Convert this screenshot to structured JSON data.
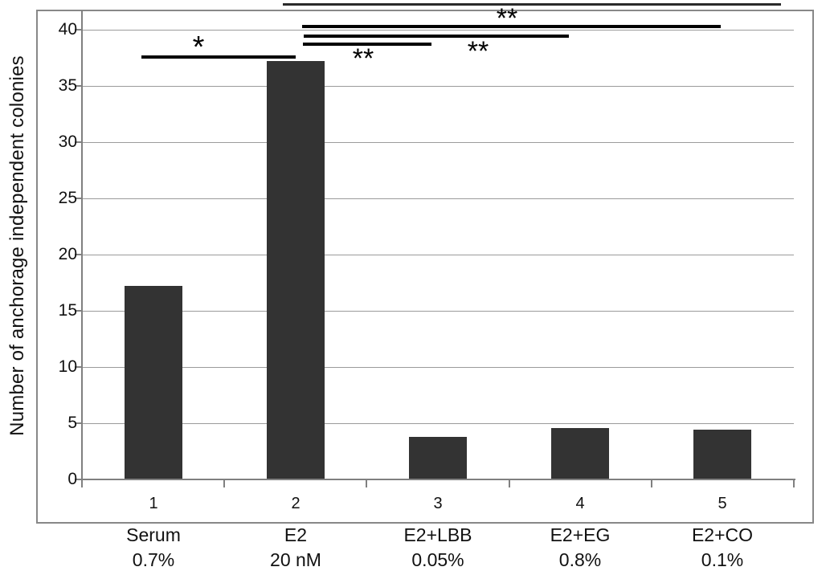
{
  "chart_data": {
    "type": "bar",
    "title": "",
    "xlabel": "",
    "ylabel": "Number of anchorage independent colonies",
    "ylim": [
      0,
      40
    ],
    "yticks": [
      0,
      5,
      10,
      15,
      20,
      25,
      30,
      35,
      40
    ],
    "grid": true,
    "legend": "none",
    "bar_color": "#333333",
    "categories": [
      {
        "tick": "1",
        "name": "Serum",
        "dose": "0.7%"
      },
      {
        "tick": "2",
        "name": "E2",
        "dose": "20 nM"
      },
      {
        "tick": "3",
        "name": "E2+LBB",
        "dose": "0.05%"
      },
      {
        "tick": "4",
        "name": "E2+EG",
        "dose": "0.8%"
      },
      {
        "tick": "5",
        "name": "E2+CO",
        "dose": "0.1%"
      }
    ],
    "values": [
      17.2,
      37.2,
      3.8,
      4.6,
      4.4
    ],
    "significance": [
      {
        "label": "*",
        "between": [
          "1",
          "2"
        ]
      },
      {
        "label": "**",
        "between": [
          "2",
          "3"
        ]
      },
      {
        "label": "**",
        "between": [
          "2",
          "4"
        ]
      },
      {
        "label": "**",
        "between": [
          "2",
          "5"
        ]
      }
    ]
  },
  "colors": {
    "bar": "#333333",
    "gridline": "#9b9b9b",
    "axis": "#808080",
    "significance_line": "#000000",
    "background": "#ffffff"
  }
}
